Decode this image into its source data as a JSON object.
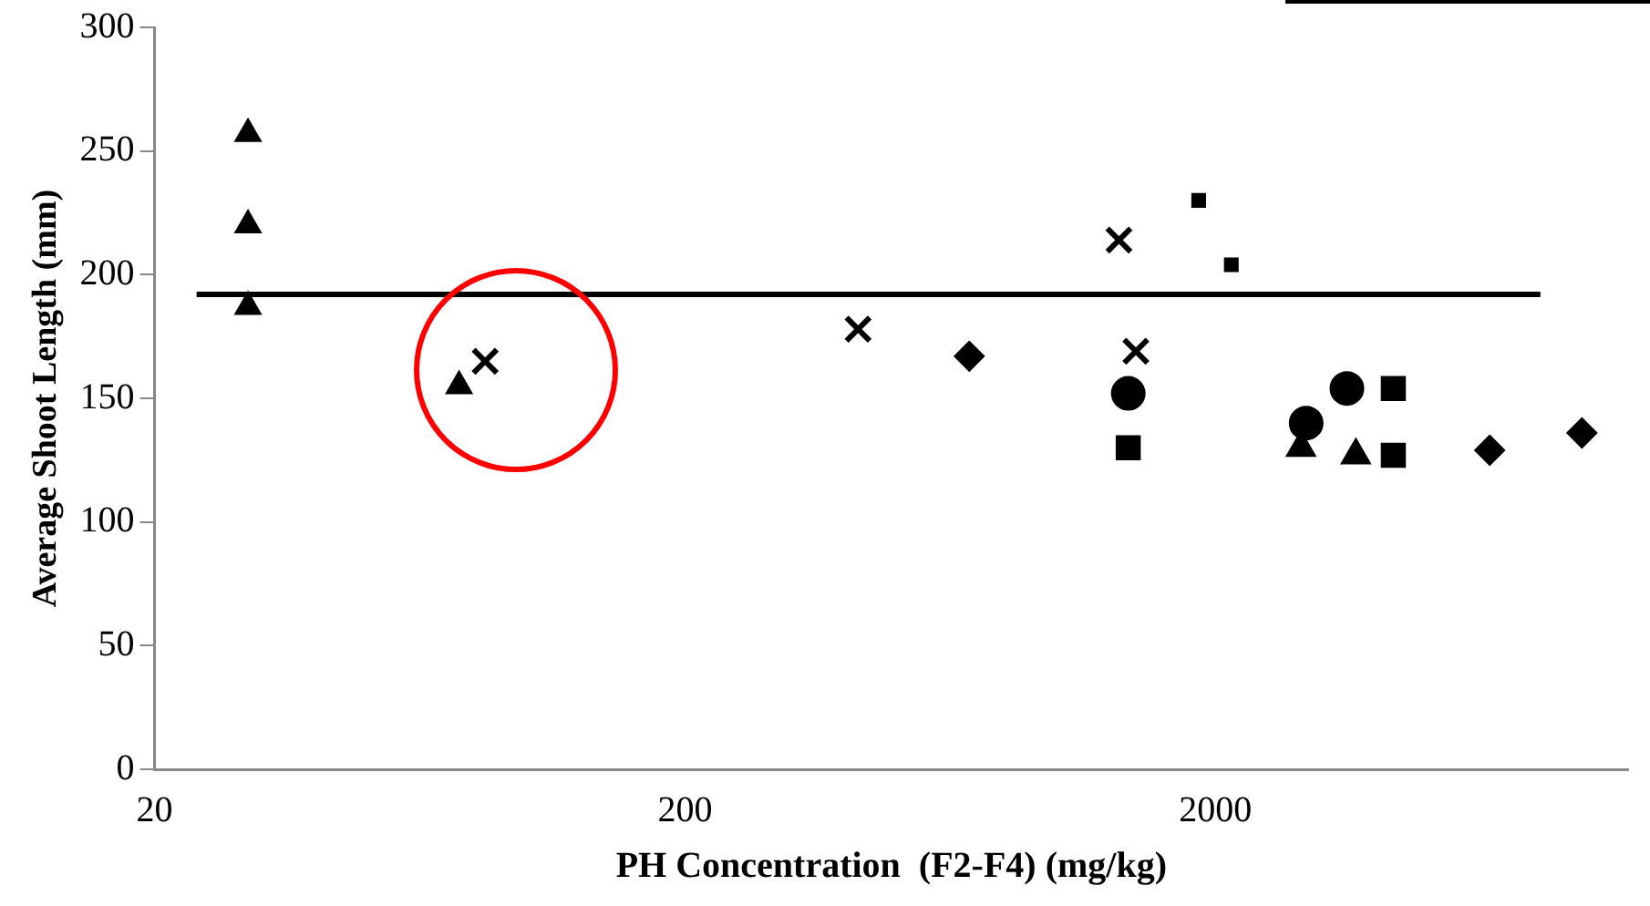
{
  "chart_data": {
    "type": "scatter",
    "xlabel": "PH Concentration  (F2-F4) (mg/kg)",
    "ylabel": "Average Shoot Length (mm)",
    "log": "x",
    "xlim": [
      20,
      12000
    ],
    "xticks": [
      20,
      200,
      2000
    ],
    "ylim": [
      0,
      300
    ],
    "yticks": [
      0,
      50,
      100,
      150,
      200,
      250,
      300
    ],
    "grid": false,
    "legend": false,
    "series": [
      {
        "color": "#000000",
        "marker": "triangle",
        "x": [
          30,
          30,
          30,
          75
        ],
        "values": [
          257,
          220,
          187,
          155
        ]
      },
      {
        "color": "#000000",
        "marker": "cross",
        "x": [
          84,
          424,
          1416
        ],
        "values": [
          165,
          178,
          169
        ]
      },
      {
        "color": "#000000",
        "marker": "diamond",
        "x": [
          687,
          6580,
          9820
        ],
        "values": [
          167,
          129,
          136
        ]
      },
      {
        "color": "#000000",
        "marker": "circle",
        "x": [
          1370,
          2966,
          3540
        ],
        "values": [
          152,
          140,
          154
        ]
      },
      {
        "color": "#000000",
        "marker": "square",
        "x": [
          1370,
          4330,
          4330
        ],
        "values": [
          130,
          154,
          127
        ]
      },
      {
        "color": "#000000",
        "marker": "triangle",
        "x": [
          2900,
          3680
        ],
        "values": [
          130,
          127
        ]
      },
      {
        "color": "#000000",
        "marker": "cross",
        "x": [
          1316
        ],
        "values": [
          214
        ]
      },
      {
        "color": "#000000",
        "marker": "square",
        "x": [
          1860,
          2143
        ],
        "values": [
          230,
          204
        ]
      },
      {
        "type": "line",
        "color": "#000000",
        "marker": "none",
        "line_style": "solid",
        "x": [
          24,
          8200
        ],
        "values": [
          192,
          192
        ]
      }
    ]
  }
}
